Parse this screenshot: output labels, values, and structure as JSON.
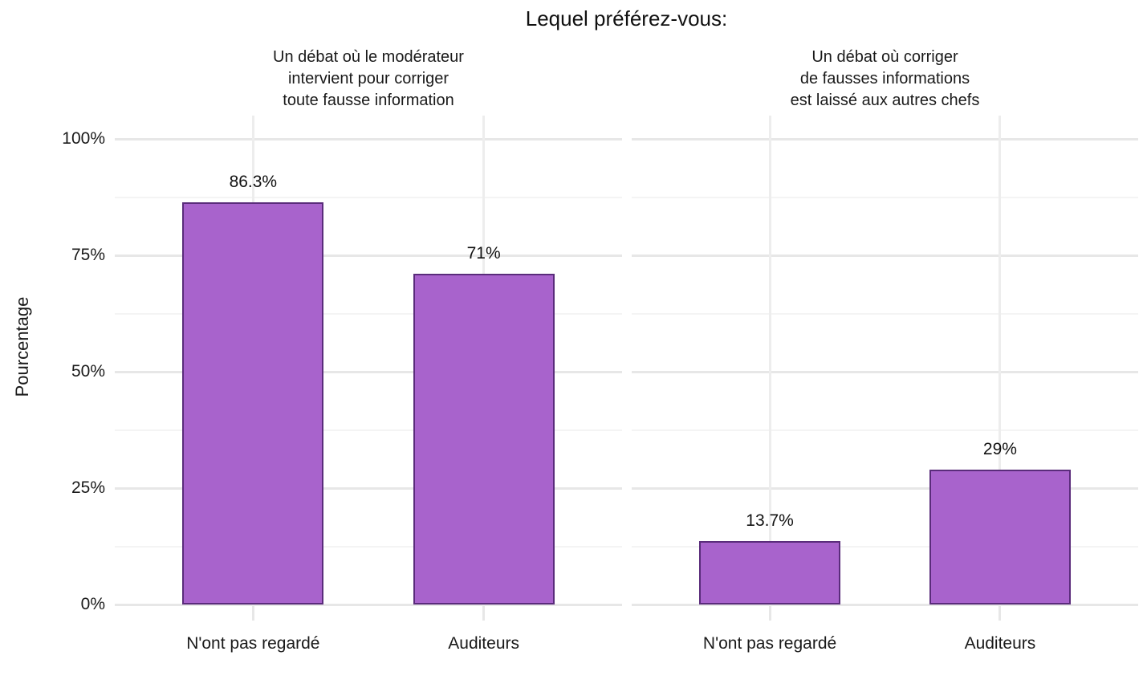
{
  "chart_data": {
    "type": "bar",
    "title": "Lequel préférez-vous:",
    "ylabel": "Pourcentage",
    "xlabel": "",
    "categories": [
      "N'ont pas regardé",
      "Auditeurs"
    ],
    "ylim": [
      0,
      100
    ],
    "grid": "on",
    "legend": "none",
    "y_ticks": [
      {
        "label": "0%",
        "value": 0
      },
      {
        "label": "25%",
        "value": 25
      },
      {
        "label": "50%",
        "value": 50
      },
      {
        "label": "75%",
        "value": 75
      },
      {
        "label": "100%",
        "value": 100
      }
    ],
    "facets": [
      {
        "title_lines": [
          "Un débat où le modérateur",
          "intervient pour corriger",
          "toute fausse information"
        ],
        "title": "Un débat où le modérateur intervient pour corriger toute fausse information",
        "series_name": "Pourcentage",
        "values": [
          86.3,
          71
        ],
        "value_labels": [
          "86.3%",
          "71%"
        ]
      },
      {
        "title_lines": [
          "Un débat où corriger",
          "de fausses informations",
          "est laissé aux autres chefs"
        ],
        "title": "Un débat où corriger de fausses informations est laissé aux autres chefs",
        "series_name": "Pourcentage",
        "values": [
          13.7,
          29
        ],
        "value_labels": [
          "13.7%",
          "29%"
        ]
      }
    ],
    "colors": {
      "bar_fill": "#A863CC",
      "bar_stroke": "#5A2C7B",
      "grid_major": "#E7E7E7",
      "grid_minor": "#F4F4F4",
      "text": "#1A1A1A"
    }
  }
}
